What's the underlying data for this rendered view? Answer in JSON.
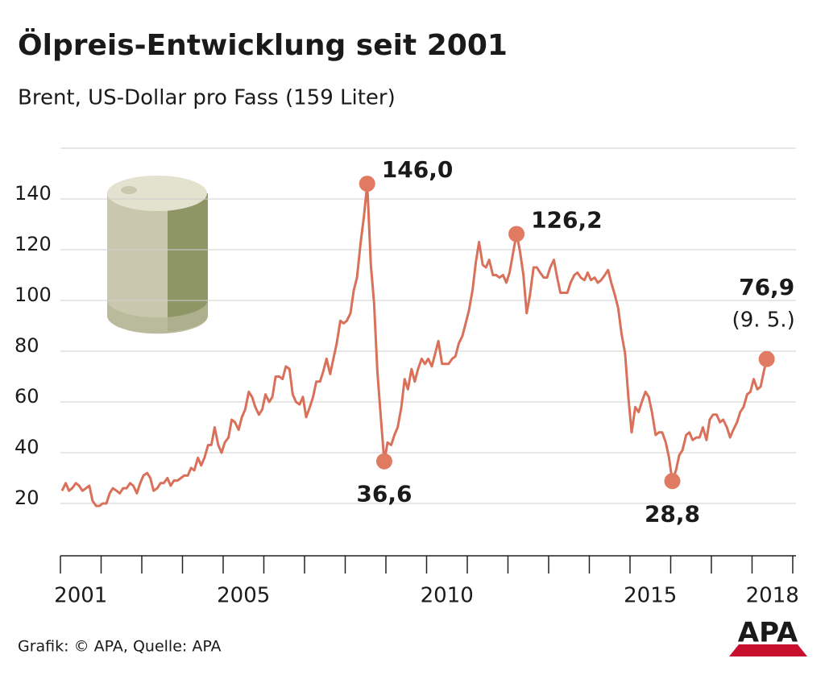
{
  "chart_data": {
    "type": "line",
    "title": "Ölpreis-Entwicklung seit 2001",
    "subtitle": "Brent, US-Dollar pro Fass (159 Liter)",
    "source": "Grafik: © APA, Quelle: APA",
    "logo": "APA",
    "date_label": "(9. 5.)",
    "color": "#d9705a",
    "marker_color": "#e07b62",
    "xlim": [
      2001,
      2019.08
    ],
    "xticks": [
      2001,
      2002,
      2003,
      2004,
      2005,
      2006,
      2007,
      2008,
      2009,
      2010,
      2011,
      2012,
      2013,
      2014,
      2015,
      2016,
      2017,
      2018,
      2019
    ],
    "xlabels": [
      {
        "value": 2001.5,
        "label": "2001"
      },
      {
        "value": 2005.5,
        "label": "2005"
      },
      {
        "value": 2010.5,
        "label": "2010"
      },
      {
        "value": 2015.5,
        "label": "2015"
      },
      {
        "value": 2018.5,
        "label": "2018"
      }
    ],
    "ylim": [
      0,
      160
    ],
    "yticks": [
      20,
      40,
      60,
      80,
      100,
      120,
      140
    ],
    "grid_lines": [
      20,
      40,
      60,
      80,
      100,
      120,
      140,
      160
    ],
    "grid": true,
    "x": [
      2001.04,
      2001.13,
      2001.21,
      2001.29,
      2001.38,
      2001.46,
      2001.54,
      2001.63,
      2001.71,
      2001.79,
      2001.88,
      2001.96,
      2002.04,
      2002.13,
      2002.21,
      2002.29,
      2002.38,
      2002.46,
      2002.54,
      2002.63,
      2002.71,
      2002.79,
      2002.88,
      2002.96,
      2003.04,
      2003.13,
      2003.21,
      2003.29,
      2003.38,
      2003.46,
      2003.54,
      2003.63,
      2003.71,
      2003.79,
      2003.88,
      2003.96,
      2004.04,
      2004.13,
      2004.21,
      2004.29,
      2004.38,
      2004.46,
      2004.54,
      2004.63,
      2004.71,
      2004.79,
      2004.88,
      2004.96,
      2005.04,
      2005.13,
      2005.21,
      2005.29,
      2005.38,
      2005.46,
      2005.54,
      2005.63,
      2005.71,
      2005.79,
      2005.88,
      2005.96,
      2006.04,
      2006.13,
      2006.21,
      2006.29,
      2006.38,
      2006.46,
      2006.54,
      2006.63,
      2006.71,
      2006.79,
      2006.88,
      2006.96,
      2007.04,
      2007.13,
      2007.21,
      2007.29,
      2007.38,
      2007.46,
      2007.54,
      2007.63,
      2007.71,
      2007.79,
      2007.88,
      2007.96,
      2008.04,
      2008.13,
      2008.21,
      2008.29,
      2008.38,
      2008.46,
      2008.54,
      2008.63,
      2008.71,
      2008.79,
      2008.88,
      2008.96,
      2009.04,
      2009.13,
      2009.21,
      2009.29,
      2009.38,
      2009.46,
      2009.54,
      2009.63,
      2009.71,
      2009.79,
      2009.88,
      2009.96,
      2010.04,
      2010.13,
      2010.21,
      2010.29,
      2010.38,
      2010.46,
      2010.54,
      2010.63,
      2010.71,
      2010.79,
      2010.88,
      2010.96,
      2011.04,
      2011.13,
      2011.21,
      2011.29,
      2011.38,
      2011.46,
      2011.54,
      2011.63,
      2011.71,
      2011.79,
      2011.88,
      2011.96,
      2012.04,
      2012.13,
      2012.21,
      2012.29,
      2012.38,
      2012.46,
      2012.54,
      2012.63,
      2012.71,
      2012.79,
      2012.88,
      2012.96,
      2013.04,
      2013.13,
      2013.21,
      2013.29,
      2013.38,
      2013.46,
      2013.54,
      2013.63,
      2013.71,
      2013.79,
      2013.88,
      2013.96,
      2014.04,
      2014.13,
      2014.21,
      2014.29,
      2014.38,
      2014.46,
      2014.54,
      2014.63,
      2014.71,
      2014.79,
      2014.88,
      2014.96,
      2015.04,
      2015.13,
      2015.21,
      2015.29,
      2015.38,
      2015.46,
      2015.54,
      2015.63,
      2015.71,
      2015.79,
      2015.88,
      2015.96,
      2016.04,
      2016.13,
      2016.21,
      2016.29,
      2016.38,
      2016.46,
      2016.54,
      2016.63,
      2016.71,
      2016.79,
      2016.88,
      2016.96,
      2017.04,
      2017.13,
      2017.21,
      2017.29,
      2017.38,
      2017.46,
      2017.54,
      2017.63,
      2017.71,
      2017.79,
      2017.88,
      2017.96,
      2018.04,
      2018.13,
      2018.21,
      2018.29,
      2018.36
    ],
    "values": [
      25,
      28,
      25,
      26,
      28,
      27,
      25,
      26,
      27,
      21,
      19,
      19,
      20,
      20,
      24,
      26,
      25,
      24,
      26,
      26,
      28,
      27,
      24,
      28,
      31,
      32,
      30,
      25,
      26,
      28,
      28,
      30,
      27,
      29,
      29,
      30,
      31,
      31,
      34,
      33,
      38,
      35,
      38,
      43,
      43,
      50,
      43,
      40,
      44,
      46,
      53,
      52,
      49,
      54,
      57,
      64,
      62,
      58,
      55,
      57,
      63,
      60,
      62,
      70,
      70,
      69,
      74,
      73,
      63,
      60,
      59,
      62,
      54,
      58,
      62,
      68,
      68,
      72,
      77,
      71,
      77,
      83,
      92,
      91,
      92,
      95,
      104,
      109,
      123,
      133,
      146.0,
      114,
      99,
      72,
      53,
      36.6,
      44,
      43,
      47,
      50,
      58,
      69,
      65,
      73,
      68,
      73,
      77,
      75,
      77,
      74,
      79,
      84,
      75,
      75,
      75,
      77,
      78,
      83,
      86,
      91,
      96,
      104,
      115,
      123,
      114,
      113,
      116,
      110,
      110,
      109,
      110,
      107,
      111,
      119,
      126.2,
      120,
      110,
      95,
      102,
      113,
      113,
      111,
      109,
      109,
      113,
      116,
      109,
      103,
      103,
      103,
      107,
      110,
      111,
      109,
      108,
      111,
      108,
      109,
      107,
      108,
      110,
      112,
      107,
      102,
      97,
      87,
      79,
      62,
      48,
      58,
      56,
      60,
      64,
      62,
      56,
      47,
      48,
      48,
      44,
      38,
      28.8,
      33,
      39,
      41,
      47,
      48,
      45,
      46,
      46,
      50,
      45,
      53,
      55,
      55,
      52,
      53,
      50,
      46,
      49,
      52,
      56,
      58,
      63,
      64,
      69,
      65,
      66,
      72,
      76.9
    ],
    "value_labels": [
      null,
      null,
      null,
      null,
      null,
      null,
      null,
      null,
      null,
      null,
      null,
      null,
      null,
      null,
      null,
      null,
      null,
      null,
      null,
      null,
      null,
      null,
      null,
      null,
      null,
      null,
      null,
      null,
      null,
      null,
      null,
      null,
      null,
      null,
      null,
      null,
      null,
      null,
      null,
      null,
      null,
      null,
      null,
      null,
      null,
      null,
      null,
      null,
      null,
      null,
      null,
      null,
      null,
      null,
      null,
      null,
      null,
      null,
      null,
      null,
      null,
      null,
      null,
      null,
      null,
      null,
      null,
      null,
      null,
      null,
      null,
      null,
      null,
      null,
      null,
      null,
      null,
      null,
      null,
      null,
      null,
      null,
      null,
      null,
      null,
      null,
      null,
      null,
      null,
      null,
      "146,0",
      null,
      null,
      null,
      null,
      "36,6",
      null,
      null,
      null,
      null,
      null,
      null,
      null,
      null,
      null,
      null,
      null,
      null,
      null,
      null,
      null,
      null,
      null,
      null,
      null,
      null,
      null,
      null,
      null,
      null,
      null,
      null,
      null,
      null,
      null,
      null,
      null,
      null,
      null,
      null,
      null,
      null,
      null,
      null,
      "126,2",
      null,
      null,
      null,
      null,
      null,
      null,
      null,
      null,
      null,
      null,
      null,
      null,
      null,
      null,
      null,
      null,
      null,
      null,
      null,
      null,
      null,
      null,
      null,
      null,
      null,
      null,
      null,
      null,
      null,
      null,
      null,
      null,
      null,
      null,
      null,
      null,
      null,
      null,
      null,
      null,
      null,
      null,
      null,
      null,
      null,
      "28,8",
      null,
      null,
      null,
      null,
      null,
      null,
      null,
      null,
      null,
      null,
      null,
      null,
      null,
      null,
      null,
      null,
      null,
      null,
      null,
      null,
      null,
      null,
      null,
      null,
      null,
      null,
      null,
      "76,9"
    ]
  }
}
